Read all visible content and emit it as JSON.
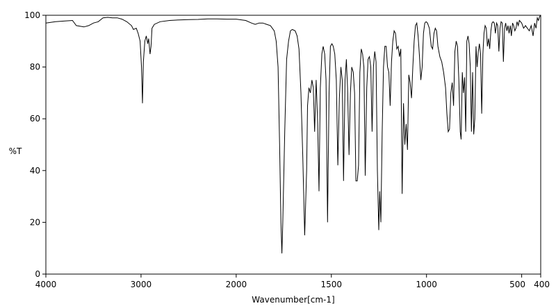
{
  "chart_data": {
    "type": "line",
    "title": "",
    "xlabel": "Wavenumber[cm-1]",
    "ylabel": "%T",
    "xlim": [
      4000,
      400
    ],
    "ylim": [
      0,
      100
    ],
    "x_axis_reversed": true,
    "grid": false,
    "xticks": [
      {
        "value": 4000,
        "label": "4000"
      },
      {
        "value": 3000,
        "label": "3000"
      },
      {
        "value": 2000,
        "label": "2000"
      },
      {
        "value": 1500,
        "label": "1500"
      },
      {
        "value": 1000,
        "label": "1000"
      },
      {
        "value": 500,
        "label": "500"
      },
      {
        "value": 400,
        "label": "400"
      }
    ],
    "yticks": [
      {
        "value": 0,
        "label": "0"
      },
      {
        "value": 20,
        "label": "20"
      },
      {
        "value": 40,
        "label": "40"
      },
      {
        "value": 60,
        "label": "60"
      },
      {
        "value": 80,
        "label": "80"
      },
      {
        "value": 100,
        "label": "100"
      }
    ],
    "x_scale_segments": [
      {
        "from": 4000,
        "to": 2000,
        "weight": 2
      },
      {
        "from": 2000,
        "to": 400,
        "weight": 3.2
      }
    ],
    "series": [
      {
        "color": "#000000",
        "points": [
          [
            4000,
            97
          ],
          [
            3900,
            97.5
          ],
          [
            3800,
            97.8
          ],
          [
            3720,
            98
          ],
          [
            3680,
            96
          ],
          [
            3600,
            95.5
          ],
          [
            3550,
            96
          ],
          [
            3500,
            97
          ],
          [
            3450,
            97.5
          ],
          [
            3400,
            99
          ],
          [
            3350,
            99.2
          ],
          [
            3300,
            99
          ],
          [
            3250,
            99
          ],
          [
            3200,
            98.5
          ],
          [
            3150,
            97.5
          ],
          [
            3100,
            96
          ],
          [
            3080,
            94.5
          ],
          [
            3050,
            95
          ],
          [
            3030,
            93
          ],
          [
            3010,
            90
          ],
          [
            2995,
            80
          ],
          [
            2985,
            66
          ],
          [
            2975,
            82
          ],
          [
            2960,
            90
          ],
          [
            2945,
            92
          ],
          [
            2930,
            89
          ],
          [
            2920,
            91
          ],
          [
            2905,
            85
          ],
          [
            2895,
            88
          ],
          [
            2885,
            95
          ],
          [
            2860,
            96.5
          ],
          [
            2800,
            97.5
          ],
          [
            2700,
            98
          ],
          [
            2600,
            98.2
          ],
          [
            2500,
            98.3
          ],
          [
            2400,
            98.4
          ],
          [
            2300,
            98.6
          ],
          [
            2200,
            98.6
          ],
          [
            2100,
            98.5
          ],
          [
            2000,
            98.5
          ],
          [
            1950,
            98
          ],
          [
            1920,
            97
          ],
          [
            1900,
            96.5
          ],
          [
            1880,
            97
          ],
          [
            1860,
            97
          ],
          [
            1840,
            96.5
          ],
          [
            1820,
            96
          ],
          [
            1800,
            94
          ],
          [
            1790,
            90
          ],
          [
            1780,
            80
          ],
          [
            1772,
            50
          ],
          [
            1765,
            20
          ],
          [
            1760,
            8
          ],
          [
            1755,
            20
          ],
          [
            1745,
            55
          ],
          [
            1735,
            83
          ],
          [
            1725,
            90
          ],
          [
            1715,
            94
          ],
          [
            1705,
            94.5
          ],
          [
            1690,
            94
          ],
          [
            1680,
            92
          ],
          [
            1670,
            87
          ],
          [
            1660,
            70
          ],
          [
            1650,
            45
          ],
          [
            1640,
            15
          ],
          [
            1630,
            40
          ],
          [
            1625,
            65
          ],
          [
            1618,
            72
          ],
          [
            1610,
            70
          ],
          [
            1602,
            75
          ],
          [
            1595,
            72
          ],
          [
            1588,
            55
          ],
          [
            1580,
            75
          ],
          [
            1572,
            58
          ],
          [
            1565,
            32
          ],
          [
            1558,
            72
          ],
          [
            1550,
            85
          ],
          [
            1543,
            88
          ],
          [
            1535,
            85
          ],
          [
            1528,
            75
          ],
          [
            1520,
            20
          ],
          [
            1512,
            70
          ],
          [
            1505,
            88
          ],
          [
            1497,
            89
          ],
          [
            1490,
            88
          ],
          [
            1482,
            85
          ],
          [
            1474,
            75
          ],
          [
            1466,
            42
          ],
          [
            1458,
            68
          ],
          [
            1450,
            80
          ],
          [
            1443,
            75
          ],
          [
            1436,
            36
          ],
          [
            1428,
            75
          ],
          [
            1421,
            83
          ],
          [
            1414,
            70
          ],
          [
            1407,
            46
          ],
          [
            1400,
            70
          ],
          [
            1393,
            80
          ],
          [
            1385,
            78
          ],
          [
            1378,
            70
          ],
          [
            1371,
            36
          ],
          [
            1364,
            36
          ],
          [
            1357,
            42
          ],
          [
            1350,
            78
          ],
          [
            1343,
            87
          ],
          [
            1336,
            85
          ],
          [
            1329,
            80
          ],
          [
            1322,
            38
          ],
          [
            1314,
            72
          ],
          [
            1307,
            83
          ],
          [
            1300,
            84
          ],
          [
            1293,
            80
          ],
          [
            1286,
            55
          ],
          [
            1279,
            80
          ],
          [
            1272,
            86
          ],
          [
            1265,
            82
          ],
          [
            1258,
            40
          ],
          [
            1251,
            17
          ],
          [
            1246,
            32
          ],
          [
            1240,
            20
          ],
          [
            1233,
            55
          ],
          [
            1226,
            80
          ],
          [
            1219,
            88
          ],
          [
            1212,
            88
          ],
          [
            1205,
            80
          ],
          [
            1198,
            78
          ],
          [
            1191,
            65
          ],
          [
            1184,
            82
          ],
          [
            1177,
            90
          ],
          [
            1170,
            94
          ],
          [
            1163,
            93
          ],
          [
            1156,
            87
          ],
          [
            1149,
            88
          ],
          [
            1142,
            84
          ],
          [
            1135,
            87
          ],
          [
            1128,
            31
          ],
          [
            1121,
            66
          ],
          [
            1114,
            50
          ],
          [
            1107,
            58
          ],
          [
            1100,
            48
          ],
          [
            1093,
            77
          ],
          [
            1086,
            74
          ],
          [
            1079,
            68
          ],
          [
            1072,
            80
          ],
          [
            1065,
            90
          ],
          [
            1058,
            96
          ],
          [
            1051,
            97
          ],
          [
            1044,
            92
          ],
          [
            1037,
            84
          ],
          [
            1030,
            75
          ],
          [
            1023,
            80
          ],
          [
            1016,
            93
          ],
          [
            1009,
            97
          ],
          [
            1002,
            97.5
          ],
          [
            995,
            97
          ],
          [
            985,
            95
          ],
          [
            975,
            88
          ],
          [
            968,
            87
          ],
          [
            961,
            93
          ],
          [
            954,
            95
          ],
          [
            947,
            94
          ],
          [
            940,
            88
          ],
          [
            930,
            84
          ],
          [
            920,
            82
          ],
          [
            910,
            78
          ],
          [
            900,
            72
          ],
          [
            893,
            62
          ],
          [
            886,
            55
          ],
          [
            879,
            56
          ],
          [
            872,
            70
          ],
          [
            865,
            74
          ],
          [
            858,
            65
          ],
          [
            851,
            86
          ],
          [
            844,
            90
          ],
          [
            837,
            88
          ],
          [
            830,
            75
          ],
          [
            823,
            55
          ],
          [
            818,
            52
          ],
          [
            812,
            78
          ],
          [
            806,
            70
          ],
          [
            800,
            76
          ],
          [
            794,
            55
          ],
          [
            788,
            90
          ],
          [
            782,
            92
          ],
          [
            776,
            89
          ],
          [
            770,
            80
          ],
          [
            764,
            55
          ],
          [
            758,
            78
          ],
          [
            752,
            54
          ],
          [
            746,
            60
          ],
          [
            740,
            88
          ],
          [
            734,
            80
          ],
          [
            728,
            86
          ],
          [
            722,
            89
          ],
          [
            716,
            85
          ],
          [
            710,
            62
          ],
          [
            704,
            85
          ],
          [
            698,
            93
          ],
          [
            692,
            96
          ],
          [
            686,
            95
          ],
          [
            680,
            88
          ],
          [
            674,
            91
          ],
          [
            668,
            87
          ],
          [
            662,
            94
          ],
          [
            656,
            97
          ],
          [
            650,
            97.5
          ],
          [
            644,
            97
          ],
          [
            638,
            93
          ],
          [
            632,
            97
          ],
          [
            626,
            96
          ],
          [
            620,
            86
          ],
          [
            614,
            95
          ],
          [
            608,
            97.5
          ],
          [
            602,
            97
          ],
          [
            596,
            82
          ],
          [
            590,
            95
          ],
          [
            584,
            97
          ],
          [
            578,
            94
          ],
          [
            572,
            96
          ],
          [
            566,
            93
          ],
          [
            560,
            96
          ],
          [
            554,
            92
          ],
          [
            548,
            97
          ],
          [
            542,
            96
          ],
          [
            536,
            94
          ],
          [
            530,
            95
          ],
          [
            524,
            97.5
          ],
          [
            518,
            96
          ],
          [
            512,
            98
          ],
          [
            500,
            97
          ],
          [
            490,
            95
          ],
          [
            480,
            96
          ],
          [
            470,
            95
          ],
          [
            460,
            94
          ],
          [
            450,
            96
          ],
          [
            440,
            92
          ],
          [
            432,
            97
          ],
          [
            425,
            95
          ],
          [
            418,
            99
          ],
          [
            412,
            98
          ],
          [
            406,
            99.5
          ],
          [
            402,
            99.8
          ],
          [
            400,
            100
          ]
        ]
      }
    ]
  }
}
